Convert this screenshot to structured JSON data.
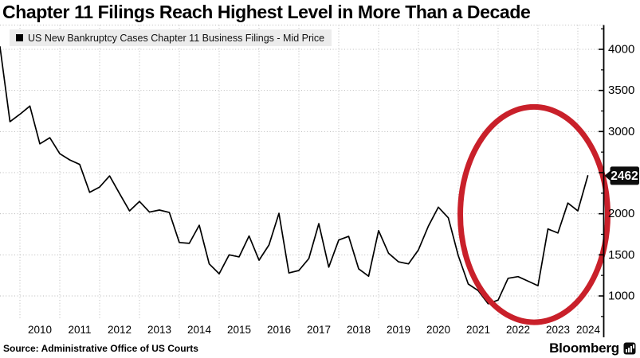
{
  "title": "Chapter 11 Filings Reach Highest Level in More Than a Decade",
  "legend": {
    "marker": "black-square",
    "label": "US New Bankruptcy Cases Chapter 11 Business Filings - Mid Price"
  },
  "source": "Source: Administrative Office of US Courts",
  "brand": {
    "name": "Bloomberg",
    "icon": "bloomberg-terminal-icon"
  },
  "colors": {
    "line": "#000000",
    "grid": "#b9b9b9",
    "axis": "#000000",
    "highlight": "#c9202a",
    "legend_bg": "#ececec",
    "badge_bg": "#0d0d0d",
    "badge_text": "#ffffff",
    "background": "#ffffff"
  },
  "chart_data": {
    "type": "line",
    "title": "Chapter 11 Filings Reach Highest Level in More Than a Decade",
    "series_name": "US New Bankruptcy Cases Chapter 11 Business Filings - Mid Price",
    "x_unit": "quarter-end as decimal year",
    "x": [
      2009.5,
      2009.75,
      2010,
      2010.25,
      2010.5,
      2010.75,
      2011,
      2011.25,
      2011.5,
      2011.75,
      2012,
      2012.25,
      2012.5,
      2012.75,
      2013,
      2013.25,
      2013.5,
      2013.75,
      2014,
      2014.25,
      2014.5,
      2014.75,
      2015,
      2015.25,
      2015.5,
      2015.75,
      2016,
      2016.25,
      2016.5,
      2016.75,
      2017,
      2017.25,
      2017.5,
      2017.75,
      2018,
      2018.25,
      2018.5,
      2018.75,
      2019,
      2019.25,
      2019.5,
      2019.75,
      2020,
      2020.25,
      2020.5,
      2020.75,
      2021,
      2021.25,
      2021.5,
      2021.75,
      2022,
      2022.25,
      2022.5,
      2022.75,
      2023,
      2023.25,
      2023.5,
      2023.75,
      2024,
      2024.25
    ],
    "values": [
      4030,
      3120,
      3210,
      3310,
      2850,
      2925,
      2730,
      2655,
      2600,
      2260,
      2325,
      2460,
      2245,
      2035,
      2150,
      2020,
      2045,
      2015,
      1650,
      1640,
      1860,
      1390,
      1270,
      1500,
      1475,
      1730,
      1435,
      1620,
      2005,
      1280,
      1310,
      1455,
      1880,
      1350,
      1680,
      1725,
      1330,
      1240,
      1795,
      1520,
      1415,
      1390,
      1560,
      1850,
      2080,
      1950,
      1490,
      1145,
      1065,
      905,
      950,
      1215,
      1235,
      1180,
      1125,
      1815,
      1765,
      2130,
      2035,
      2462
    ],
    "x_ticks": [
      2010,
      2011,
      2012,
      2013,
      2014,
      2015,
      2016,
      2017,
      2018,
      2019,
      2020,
      2021,
      2022,
      2023,
      2024
    ],
    "y_ticks": [
      1000,
      1500,
      2000,
      2500,
      3000,
      3500,
      4000
    ],
    "y_minor_ticks": [
      750,
      1250,
      1750,
      2250,
      2750,
      3250,
      3750,
      4250
    ],
    "hidden_y_tick_labels": [
      2500
    ],
    "xlim": [
      2009.5,
      2024.65
    ],
    "ylim": [
      730,
      4295
    ],
    "grid": "dotted",
    "y_axis_position": "right",
    "legend_position": "top-left",
    "last_point_label": "2462",
    "annotations": [
      {
        "type": "ellipse",
        "center_x": 2022.9,
        "center_y": 1990,
        "radius_x_years": 1.85,
        "radius_y_units": 1310,
        "color": "#c9202a",
        "stroke_width": 7
      }
    ]
  }
}
